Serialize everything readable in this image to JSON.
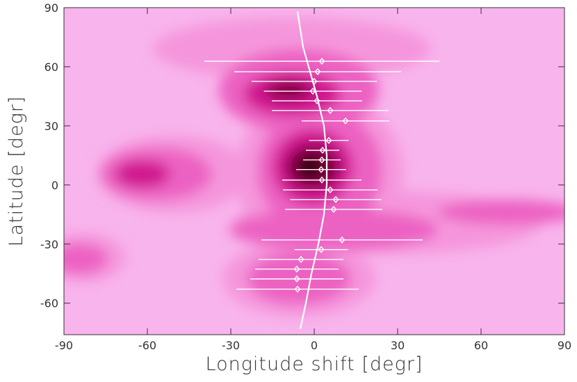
{
  "chart_data": {
    "type": "scatter",
    "xlabel": "Longitude shift [degr]",
    "ylabel": "Latitude [degr]",
    "xlim": [
      -90,
      90
    ],
    "ylim": [
      -76,
      90
    ],
    "xticks": [
      -90,
      -60,
      -30,
      0,
      30,
      60,
      90
    ],
    "yticks": [
      -60,
      -30,
      0,
      30,
      60,
      90
    ],
    "series": [
      {
        "color": "#ffffff",
        "x": [
          2.75,
          1.25,
          0,
          -0.5,
          1,
          5.75,
          11.25,
          5.25,
          3,
          2.75,
          2.5,
          2.75,
          5.75,
          7.75,
          7,
          10,
          2.5,
          -4.75,
          -6.25,
          -6.25,
          -6
        ],
        "values": [
          62.8,
          57.5,
          52.6,
          47.6,
          42.7,
          37.8,
          32.5,
          22.6,
          17.6,
          12.7,
          7.8,
          2.5,
          -2.5,
          -7.4,
          -12.4,
          -27.9,
          -32.8,
          -37.8,
          -42.7,
          -47.7,
          -52.9
        ],
        "xerr": [
          42.25,
          30,
          22.5,
          17.6,
          16.25,
          21,
          15.75,
          7.1,
          6,
          6.75,
          9,
          14.25,
          17,
          16.4,
          17.5,
          29,
          9.6,
          15.25,
          15,
          16.75,
          22
        ]
      }
    ],
    "curve": {
      "color": "#ffffff",
      "x": [
        -6,
        -4,
        -2,
        1,
        3.5,
        4.5,
        4.5,
        3.5,
        1.5,
        -1,
        -3,
        -5
      ],
      "values": [
        88,
        70,
        60,
        45,
        30,
        15,
        0,
        -15,
        -30,
        -45,
        -60,
        -73
      ]
    }
  }
}
